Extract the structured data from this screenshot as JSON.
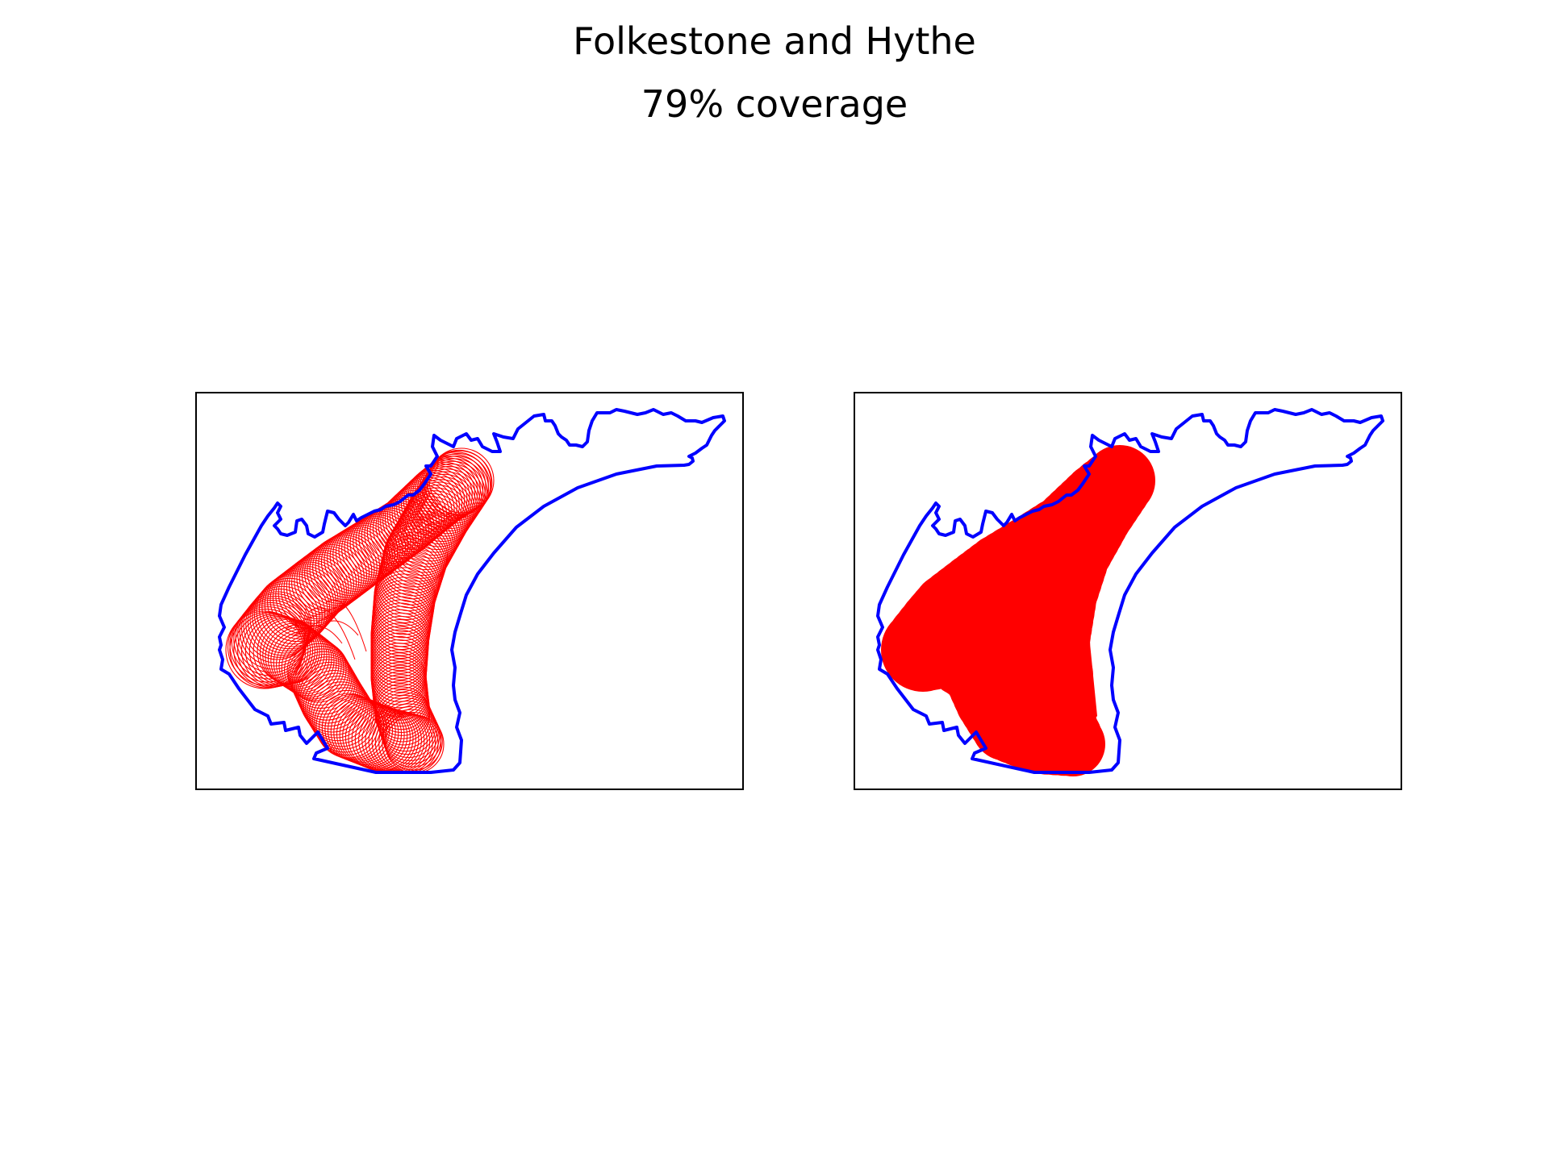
{
  "figure": {
    "title": "Folkestone and Hythe",
    "subtitle": "79% coverage"
  },
  "colors": {
    "boundary": "#0000ff",
    "coverage": "#ff0000",
    "frame": "#000000",
    "background": "#ffffff"
  },
  "panels": [
    {
      "id": "left",
      "coverage_style": "circle-outlines"
    },
    {
      "id": "right",
      "coverage_style": "filled-union"
    }
  ]
}
